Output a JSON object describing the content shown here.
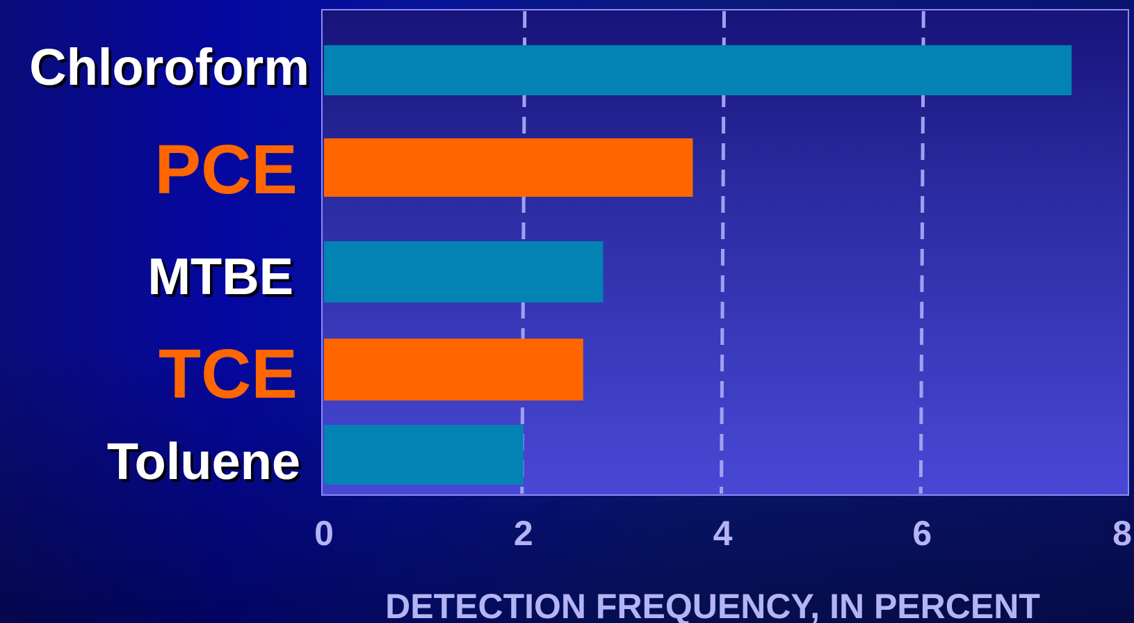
{
  "chart_data": {
    "type": "bar",
    "orientation": "horizontal",
    "categories": [
      "Chloroform",
      "PCE",
      "MTBE",
      "TCE",
      "Toluene"
    ],
    "values": [
      7.5,
      3.7,
      2.8,
      2.6,
      2.0
    ],
    "title": "",
    "xlabel": "DETECTION FREQUENCY, IN PERCENT",
    "ylabel": "",
    "xlim": [
      0,
      8
    ],
    "x_ticks": [
      "0",
      "2",
      "4",
      "6",
      "8"
    ],
    "grid": "vertical dashed",
    "legend": "none",
    "colors": {
      "teal_bar": "#0382b4",
      "orange_bar": "#ff6600",
      "label_white": "#ffffff",
      "label_orange": "#ff6600",
      "axis_text": "#b4b4f5",
      "gridline": "#a0a0f0",
      "plot_frame": "#8c8cf0"
    },
    "bar_colors": [
      "#0382b4",
      "#ff6600",
      "#0382b4",
      "#ff6600",
      "#0382b4"
    ],
    "label_colors": [
      "#ffffff",
      "#ff6600",
      "#ffffff",
      "#ff6600",
      "#ffffff"
    ]
  }
}
